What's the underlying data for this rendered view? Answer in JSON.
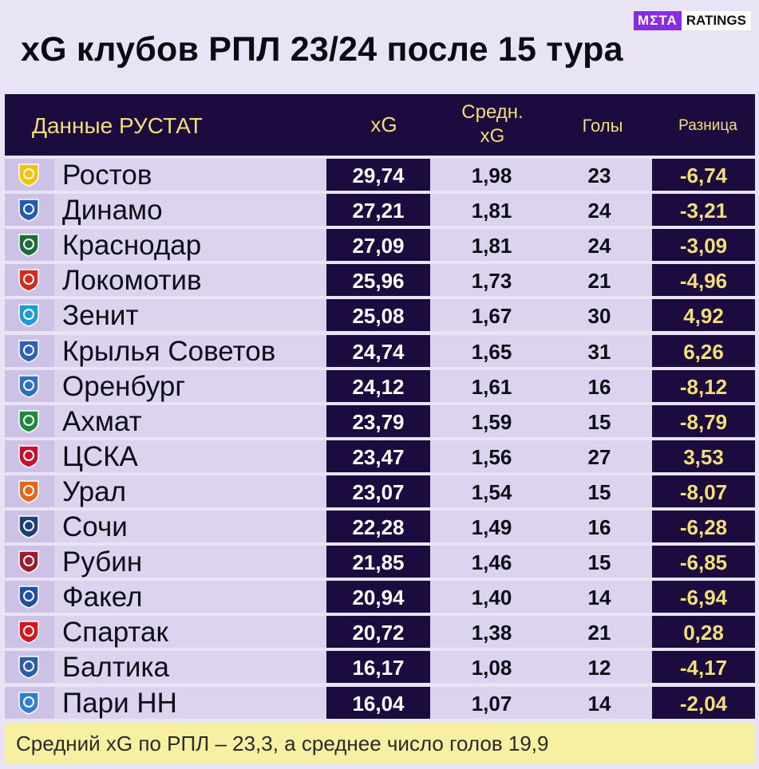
{
  "title": "xG клубов РПЛ 23/24 после 15 тура",
  "brand": {
    "meta": "MΣTA",
    "ratings": "RATINGS"
  },
  "header": {
    "source": "Данные РУСТАТ",
    "xg": "xG",
    "avg_line1": "Средн.",
    "avg_line2": "xG",
    "goals": "Голы",
    "diff": "Разница"
  },
  "colors": {
    "dark": "#1c0b3e",
    "accent": "#f3de7a",
    "band": "#dcd3ef",
    "footer": "#f7efa2"
  },
  "chart_data": {
    "type": "table",
    "columns": [
      "Данные РУСТАТ",
      "xG",
      "Средн. xG",
      "Голы",
      "Разница"
    ],
    "rows": [
      {
        "team": "Ростов",
        "xg": "29,74",
        "avg": "1,98",
        "goals": "23",
        "diff": "-6,74",
        "icon": "rostov-logo-icon",
        "color": "#f2c300"
      },
      {
        "team": "Динамо",
        "xg": "27,21",
        "avg": "1,81",
        "goals": "24",
        "diff": "-3,21",
        "icon": "dinamo-logo-icon",
        "color": "#1f5bb5"
      },
      {
        "team": "Краснодар",
        "xg": "27,09",
        "avg": "1,81",
        "goals": "24",
        "diff": "-3,09",
        "icon": "krasnodar-logo-icon",
        "color": "#1e6b3a"
      },
      {
        "team": "Локомотив",
        "xg": "25,96",
        "avg": "1,73",
        "goals": "21",
        "diff": "-4,96",
        "icon": "lokomotiv-logo-icon",
        "color": "#d52b1e"
      },
      {
        "team": "Зенит",
        "xg": "25,08",
        "avg": "1,67",
        "goals": "30",
        "diff": "4,92",
        "icon": "zenit-logo-icon",
        "color": "#1b9ad6"
      },
      {
        "team": "Крылья Советов",
        "xg": "24,74",
        "avg": "1,65",
        "goals": "31",
        "diff": "6,26",
        "icon": "krylia-logo-icon",
        "color": "#2a62b6"
      },
      {
        "team": "Оренбург",
        "xg": "24,12",
        "avg": "1,61",
        "goals": "16",
        "diff": "-8,12",
        "icon": "orenburg-logo-icon",
        "color": "#2f6fc0"
      },
      {
        "team": "Ахмат",
        "xg": "23,79",
        "avg": "1,59",
        "goals": "15",
        "diff": "-8,79",
        "icon": "akhmat-logo-icon",
        "color": "#1f8a3c"
      },
      {
        "team": "ЦСКА",
        "xg": "23,47",
        "avg": "1,56",
        "goals": "27",
        "diff": "3,53",
        "icon": "cska-logo-icon",
        "color": "#c8102e"
      },
      {
        "team": "Урал",
        "xg": "23,07",
        "avg": "1,54",
        "goals": "15",
        "diff": "-8,07",
        "icon": "ural-logo-icon",
        "color": "#e0671b"
      },
      {
        "team": "Сочи",
        "xg": "22,28",
        "avg": "1,49",
        "goals": "16",
        "diff": "-6,28",
        "icon": "sochi-logo-icon",
        "color": "#1c3f7a"
      },
      {
        "team": "Рубин",
        "xg": "21,85",
        "avg": "1,46",
        "goals": "15",
        "diff": "-6,85",
        "icon": "rubin-logo-icon",
        "color": "#9b1b30"
      },
      {
        "team": "Факел",
        "xg": "20,94",
        "avg": "1,40",
        "goals": "14",
        "diff": "-6,94",
        "icon": "fakel-logo-icon",
        "color": "#1f4fa8"
      },
      {
        "team": "Спартак",
        "xg": "20,72",
        "avg": "1,38",
        "goals": "21",
        "diff": "0,28",
        "icon": "spartak-logo-icon",
        "color": "#d7141a"
      },
      {
        "team": "Балтика",
        "xg": "16,17",
        "avg": "1,08",
        "goals": "12",
        "diff": "-4,17",
        "icon": "baltika-logo-icon",
        "color": "#2b5da8"
      },
      {
        "team": "Пари НН",
        "xg": "16,04",
        "avg": "1,07",
        "goals": "14",
        "diff": "-2,04",
        "icon": "parinn-logo-icon",
        "color": "#2f7fd0"
      }
    ]
  },
  "footer": "Средний xG по РПЛ – 23,3, а среднее число голов  19,9"
}
